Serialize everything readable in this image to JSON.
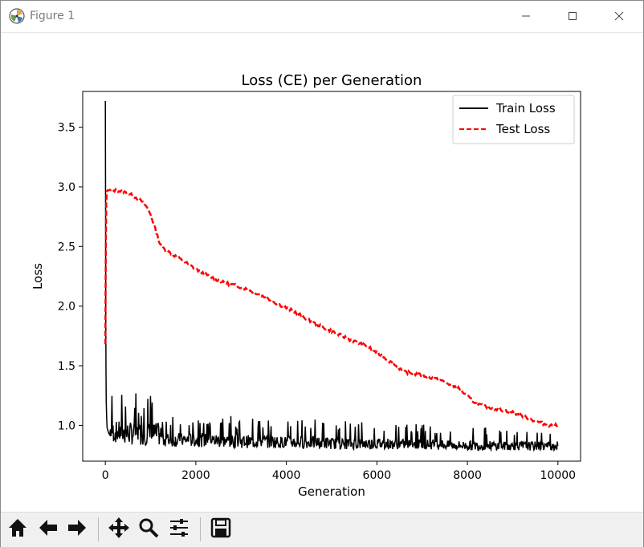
{
  "window": {
    "title": "Figure 1",
    "icons": {
      "app": "matplotlib-logo-icon",
      "minimize": "minimize-icon",
      "maximize": "maximize-icon",
      "close": "close-icon"
    }
  },
  "toolbar": {
    "buttons": [
      "home-icon",
      "back-arrow-icon",
      "forward-arrow-icon",
      "pan-icon",
      "zoom-icon",
      "subplots-icon",
      "save-icon"
    ]
  },
  "chart_data": {
    "type": "line",
    "title": "Loss (CE) per Generation",
    "xlabel": "Generation",
    "ylabel": "Loss",
    "xlim": [
      -500,
      10500
    ],
    "ylim": [
      0.7,
      3.8
    ],
    "xticks": [
      0,
      2000,
      4000,
      6000,
      8000,
      10000
    ],
    "xtick_labels": [
      "0",
      "2000",
      "4000",
      "6000",
      "8000",
      "10000"
    ],
    "yticks": [
      1.0,
      1.5,
      2.0,
      2.5,
      3.0,
      3.5
    ],
    "ytick_labels": [
      "1.0",
      "1.5",
      "2.0",
      "2.5",
      "3.0",
      "3.5"
    ],
    "grid": false,
    "legend_position": "upper right",
    "series": [
      {
        "name": "Train Loss",
        "color": "#000000",
        "style": "solid",
        "x": [
          0,
          5,
          10,
          15,
          20,
          30,
          40,
          60,
          80,
          100,
          150,
          200,
          300,
          400,
          500,
          700,
          1000,
          1500,
          2000,
          3000,
          4000,
          5000,
          6000,
          7000,
          8000,
          9000,
          10000
        ],
        "y": [
          3.72,
          2.8,
          2.0,
          1.45,
          1.2,
          1.05,
          0.98,
          0.95,
          0.93,
          0.92,
          0.91,
          0.9,
          0.9,
          0.89,
          0.89,
          0.88,
          0.88,
          0.87,
          0.87,
          0.86,
          0.86,
          0.85,
          0.85,
          0.85,
          0.84,
          0.84,
          0.84
        ],
        "noise_top_envelope": [
          1.27,
          1.1,
          1.08,
          1.06,
          1.04,
          1.02,
          1.0,
          0.99,
          0.98
        ]
      },
      {
        "name": "Test Loss",
        "color": "#ff0000",
        "style": "dashed",
        "x": [
          0,
          10,
          20,
          30,
          50,
          100,
          200,
          400,
          600,
          800,
          900,
          1000,
          1100,
          1200,
          1300,
          1500,
          1800,
          2000,
          2300,
          2600,
          3000,
          3400,
          3800,
          4200,
          4600,
          5000,
          5400,
          5800,
          6200,
          6600,
          7000,
          7400,
          7800,
          8200,
          8600,
          9000,
          9400,
          9800,
          10000
        ],
        "y": [
          1.68,
          2.4,
          2.85,
          2.96,
          2.97,
          2.97,
          2.97,
          2.96,
          2.93,
          2.88,
          2.84,
          2.77,
          2.65,
          2.53,
          2.48,
          2.43,
          2.36,
          2.31,
          2.25,
          2.2,
          2.16,
          2.1,
          2.02,
          1.95,
          1.86,
          1.79,
          1.72,
          1.66,
          1.56,
          1.45,
          1.42,
          1.38,
          1.31,
          1.18,
          1.14,
          1.11,
          1.05,
          1.0,
          1.0
        ]
      }
    ]
  }
}
